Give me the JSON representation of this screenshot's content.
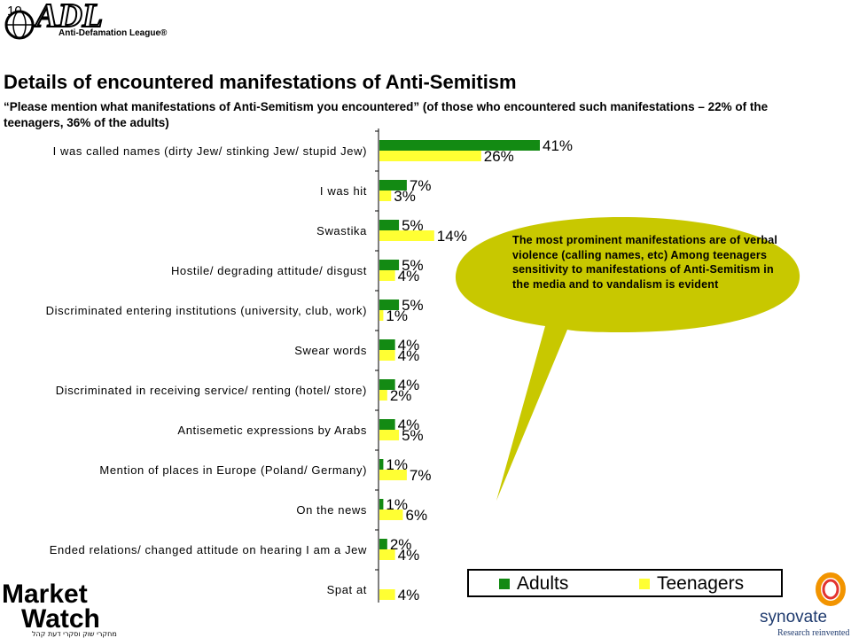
{
  "page": {
    "number": "10",
    "title": "Details of encountered manifestations of Anti-Semitism",
    "subtitle": "“Please mention what manifestations of Anti-Semitism you encountered” (of those who encountered such manifestations – 22% of the teenagers, 36% of the adults)"
  },
  "logos": {
    "adl_main": "ADL",
    "adl_sub": "Anti-Defamation League®",
    "mw_line1": "Market",
    "mw_line2": "Watch",
    "mw_hebrew": "מחקרי שוק וסקרי דעת קהל",
    "synovate": "synovate",
    "synovate_tagline": "Research reinvented"
  },
  "callout": {
    "text": "The most prominent manifestations are of verbal violence (calling names, etc) Among teenagers sensitivity to manifestations of Anti-Semitism in the media and to vandalism is evident"
  },
  "colors": {
    "adults": "#138a13",
    "teenagers": "#ffff33",
    "callout": "#c8c800"
  },
  "chart_data": {
    "type": "bar",
    "orientation": "horizontal",
    "categories": [
      "I was called names (dirty Jew/ stinking Jew/ stupid Jew)",
      "I was hit",
      "Swastika",
      "Hostile/ degrading attitude/ disgust",
      "Discriminated entering institutions (university, club, work)",
      "Swear words",
      "Discriminated in receiving service/ renting (hotel/ store)",
      "Antisemetic expressions by Arabs",
      "Mention of places in Europe (Poland/ Germany)",
      "On the news",
      "Ended relations/ changed attitude on hearing I am a Jew",
      "Spat at"
    ],
    "series": [
      {
        "name": "Adults",
        "values": [
          41,
          7,
          5,
          5,
          5,
          4,
          4,
          4,
          1,
          1,
          2,
          null
        ]
      },
      {
        "name": "Teenagers",
        "values": [
          26,
          3,
          14,
          4,
          1,
          4,
          2,
          5,
          7,
          6,
          4,
          4
        ]
      }
    ],
    "value_labels": [
      [
        "41%",
        "26%"
      ],
      [
        "7%",
        "3%"
      ],
      [
        "5%",
        "14%"
      ],
      [
        "5%",
        "4%"
      ],
      [
        "5%",
        "1%"
      ],
      [
        "4%",
        "4%"
      ],
      [
        "4%",
        "2%"
      ],
      [
        "4%",
        "5%"
      ],
      [
        "1%",
        "7%"
      ],
      [
        "1%",
        "6%"
      ],
      [
        "2%",
        "4%"
      ],
      [
        "",
        "4%"
      ]
    ],
    "legend": [
      "Adults",
      "Teenagers"
    ],
    "legend_position": "bottom-right",
    "xlim": [
      0,
      45
    ],
    "grid": false
  }
}
